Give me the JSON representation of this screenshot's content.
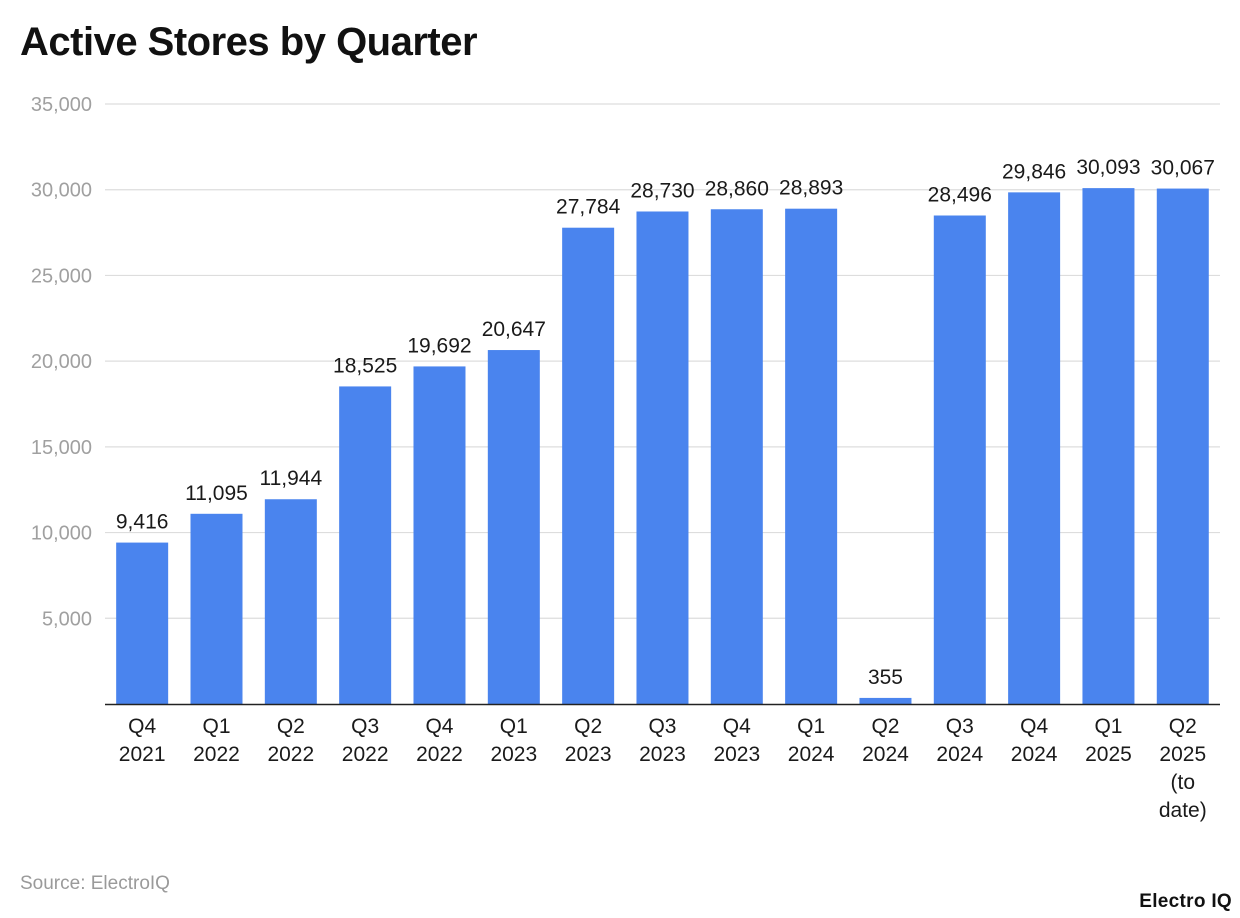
{
  "chart_data": {
    "type": "bar",
    "title": "Active Stores by Quarter",
    "categories": [
      [
        "Q4",
        "2021"
      ],
      [
        "Q1",
        "2022"
      ],
      [
        "Q2",
        "2022"
      ],
      [
        "Q3",
        "2022"
      ],
      [
        "Q4",
        "2022"
      ],
      [
        "Q1",
        "2023"
      ],
      [
        "Q2",
        "2023"
      ],
      [
        "Q3",
        "2023"
      ],
      [
        "Q4",
        "2023"
      ],
      [
        "Q1",
        "2024"
      ],
      [
        "Q2",
        "2024"
      ],
      [
        "Q3",
        "2024"
      ],
      [
        "Q4",
        "2024"
      ],
      [
        "Q1",
        "2025"
      ],
      [
        "Q2",
        "2025",
        "(to",
        "date)"
      ]
    ],
    "values": [
      9416,
      11095,
      11944,
      18525,
      19692,
      20647,
      27784,
      28730,
      28860,
      28893,
      355,
      28496,
      29846,
      30093,
      30067
    ],
    "data_labels": [
      "9,416",
      "11,095",
      "11,944",
      "18,525",
      "19,692",
      "20,647",
      "27,784",
      "28,730",
      "28,860",
      "28,893",
      "355",
      "28,496",
      "29,846",
      "30,093",
      "30,067"
    ],
    "yticks": [
      5000,
      10000,
      15000,
      20000,
      25000,
      30000,
      35000
    ],
    "ytick_labels": [
      "5,000",
      "10,000",
      "15,000",
      "20,000",
      "25,000",
      "30,000",
      "35,000"
    ],
    "ylim": [
      0,
      35000
    ],
    "xlabel": "",
    "ylabel": "",
    "grid": true,
    "colors": {
      "bar": "#4a84ee",
      "grid": "#dddddd",
      "axis": "#222222",
      "tick_text": "#a0a0a0",
      "label_text": "#1a1a1a"
    }
  },
  "footer": {
    "source": "Source: ElectroIQ",
    "brand": "Electro IQ"
  }
}
